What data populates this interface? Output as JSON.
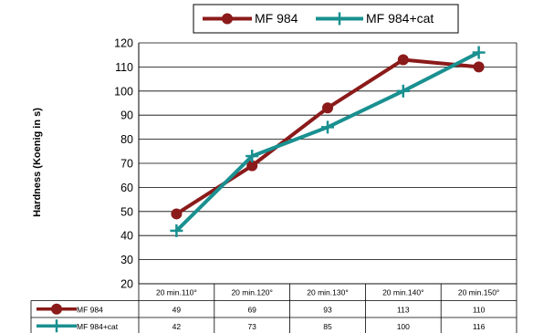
{
  "chart_data": {
    "type": "line",
    "ylabel": "Hardness (Koenig in s)",
    "ylim": [
      20,
      120
    ],
    "yticks": [
      20,
      30,
      40,
      50,
      60,
      70,
      80,
      90,
      100,
      110,
      120
    ],
    "grid": "horizontal",
    "legend": "top-center",
    "data_table": true,
    "categories": [
      "20 min.110°",
      "20 min.120°",
      "20 min.130°",
      "20 min.140°",
      "20 min.150°"
    ],
    "series": [
      {
        "name": "MF 984",
        "values": [
          49,
          69,
          93,
          113,
          110
        ],
        "color": "#8b1a1a",
        "marker": "circle"
      },
      {
        "name": "MF 984+cat",
        "values": [
          42,
          73,
          85,
          100,
          116
        ],
        "color": "#1a9090",
        "marker": "plus"
      }
    ]
  }
}
